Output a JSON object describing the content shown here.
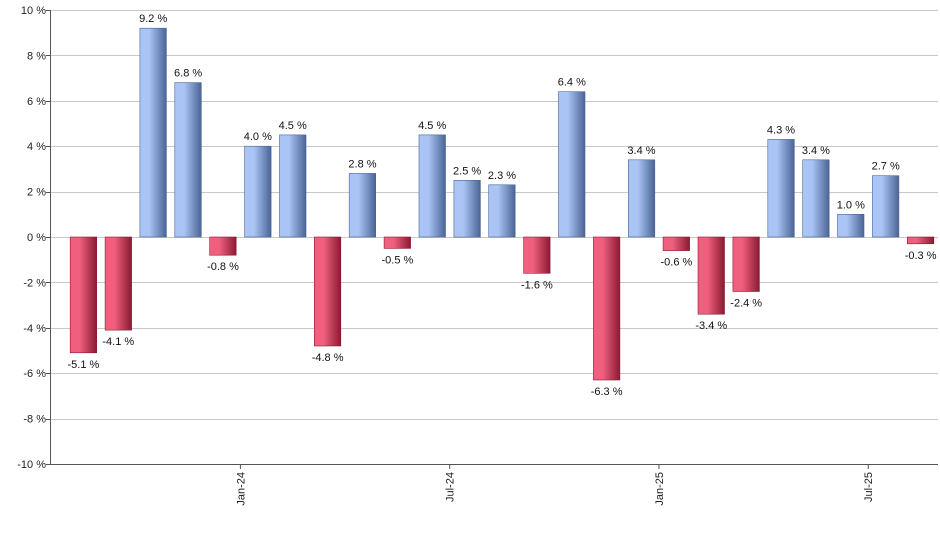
{
  "chart_data": {
    "type": "bar",
    "title": "",
    "xlabel": "",
    "ylabel": "",
    "unit": "%",
    "ylim": [
      -10,
      10
    ],
    "ytick_step": 2,
    "grid": true,
    "legend": "none",
    "values": [
      -5.1,
      -4.1,
      9.2,
      6.8,
      -0.8,
      4.0,
      4.5,
      -4.8,
      2.8,
      -0.5,
      4.5,
      2.5,
      2.3,
      -1.6,
      6.4,
      -6.3,
      3.4,
      -0.6,
      -3.4,
      -2.4,
      4.3,
      3.4,
      1.0,
      2.7,
      -0.3
    ],
    "data_labels": [
      "-5.1 %",
      "-4.1 %",
      "9.2 %",
      "6.8 %",
      "-0.8 %",
      "4.0 %",
      "4.5 %",
      "-4.8 %",
      "2.8 %",
      "-0.5 %",
      "4.5 %",
      "2.5 %",
      "2.3 %",
      "-1.6 %",
      "6.4 %",
      "-6.3 %",
      "3.4 %",
      "-0.6 %",
      "-3.4 %",
      "-2.4 %",
      "4.3 %",
      "3.4 %",
      "1.0 %",
      "2.7 %",
      "-0.3 %"
    ],
    "y_tick_labels": [
      "10 %",
      "8 %",
      "6 %",
      "4 %",
      "2 %",
      "0 %",
      "-2 %",
      "-4 %",
      "-6 %",
      "-8 %",
      "-10 %"
    ],
    "x_tick_labels": [
      {
        "label": "Jan-24",
        "after_bar": 4
      },
      {
        "label": "Jul-24",
        "after_bar": 10
      },
      {
        "label": "Jan-25",
        "after_bar": 16
      },
      {
        "label": "Jul-25",
        "after_bar": 22
      }
    ],
    "colors": {
      "positive_light": "#a9c4f5",
      "positive_dark": "#4a6496",
      "negative_light": "#f0607e",
      "negative_dark": "#8a1a33",
      "grid": "#c8c8c8",
      "axis": "#555555"
    }
  }
}
